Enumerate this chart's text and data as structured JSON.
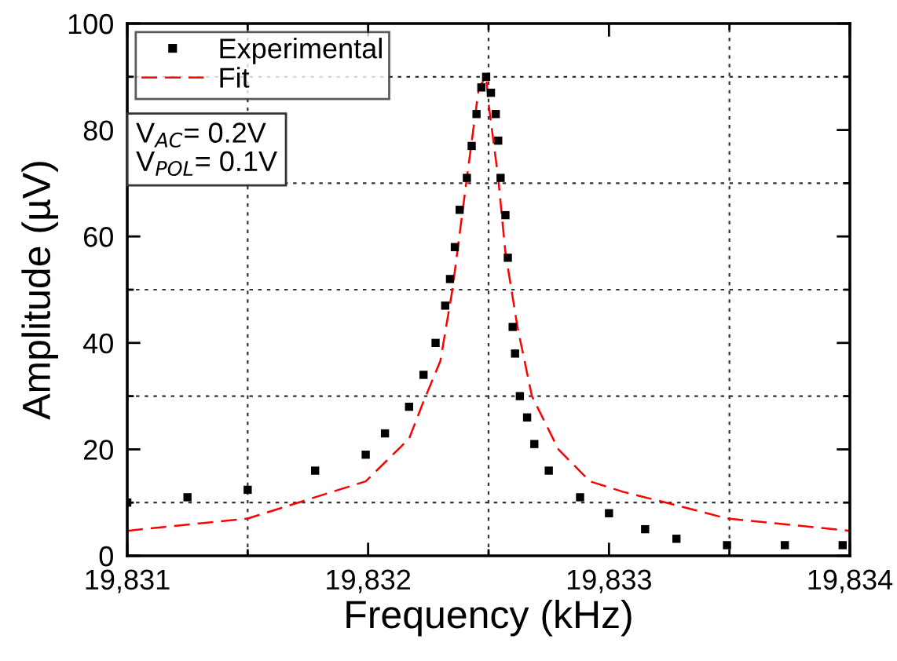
{
  "chart_data": {
    "type": "scatter",
    "xlabel": "Frequency (kHz)",
    "ylabel": "Amplitude (µV)",
    "xlim": [
      19831,
      19834
    ],
    "xticks": [
      {
        "value": 19831,
        "label": "19,831"
      },
      {
        "value": 19831.5,
        "label": null
      },
      {
        "value": 19832,
        "label": "19,832"
      },
      {
        "value": 19832.5,
        "label": null
      },
      {
        "value": 19833,
        "label": "19,833"
      },
      {
        "value": 19833.5,
        "label": null
      },
      {
        "value": 19834,
        "label": "19,834"
      }
    ],
    "ylim": [
      0,
      100
    ],
    "yticks": [
      0,
      {
        "value": 10,
        "label": null
      },
      20,
      {
        "value": 30,
        "label": null
      },
      40,
      {
        "value": 50,
        "label": null
      },
      60,
      {
        "value": 70,
        "label": null
      },
      80,
      {
        "value": 90,
        "label": null
      },
      100
    ],
    "grid": true,
    "legend": "top left",
    "annotations": [
      "V$_{AC}$= 0.2V",
      "V$_{POL}$= 0.1V"
    ],
    "series": [
      {
        "name": "Experimental",
        "marker": "square",
        "color": "#000000",
        "x": [
          19831,
          19831.25,
          19831.5,
          19831.78,
          19831.99,
          19832.07,
          19832.17,
          19832.23,
          19832.28,
          19832.32,
          19832.34,
          19832.36,
          19832.38,
          19832.41,
          19832.43,
          19832.45,
          19832.47,
          19832.49,
          19832.51,
          19832.53,
          19832.54,
          19832.55,
          19832.57,
          19832.58,
          19832.6,
          19832.61,
          19832.63,
          19832.66,
          19832.69,
          19832.75,
          19832.88,
          19833,
          19833.15,
          19833.28,
          19833.49,
          19833.73,
          19833.97
        ],
        "values": [
          10,
          11,
          12.4,
          16,
          19,
          23,
          28,
          34,
          40,
          47,
          52,
          58,
          65,
          71,
          77,
          83,
          88,
          90,
          87,
          83,
          78,
          71,
          64,
          56,
          43,
          38,
          30,
          26,
          21,
          16,
          11,
          8,
          5,
          3.2,
          2,
          2,
          2
        ]
      },
      {
        "name": "Fit",
        "type": "line",
        "line_style": "dashed",
        "marker": "none",
        "color": "#ff0000",
        "x": [
          19831,
          19831.5,
          19831.99,
          19832.17,
          19832.23,
          19832.3,
          19832.35,
          19832.41,
          19832.46,
          19832.49,
          19832.5,
          19832.54,
          19832.57,
          19832.62,
          19832.68,
          19832.79,
          19832.92,
          19833.06,
          19833.28,
          19833.49,
          19834
        ],
        "values": [
          4.7,
          7,
          14,
          22,
          29,
          36.6,
          50,
          71,
          88,
          90,
          85,
          71,
          57,
          43,
          30,
          20,
          14,
          12,
          9.5,
          7,
          4.7
        ]
      }
    ]
  }
}
